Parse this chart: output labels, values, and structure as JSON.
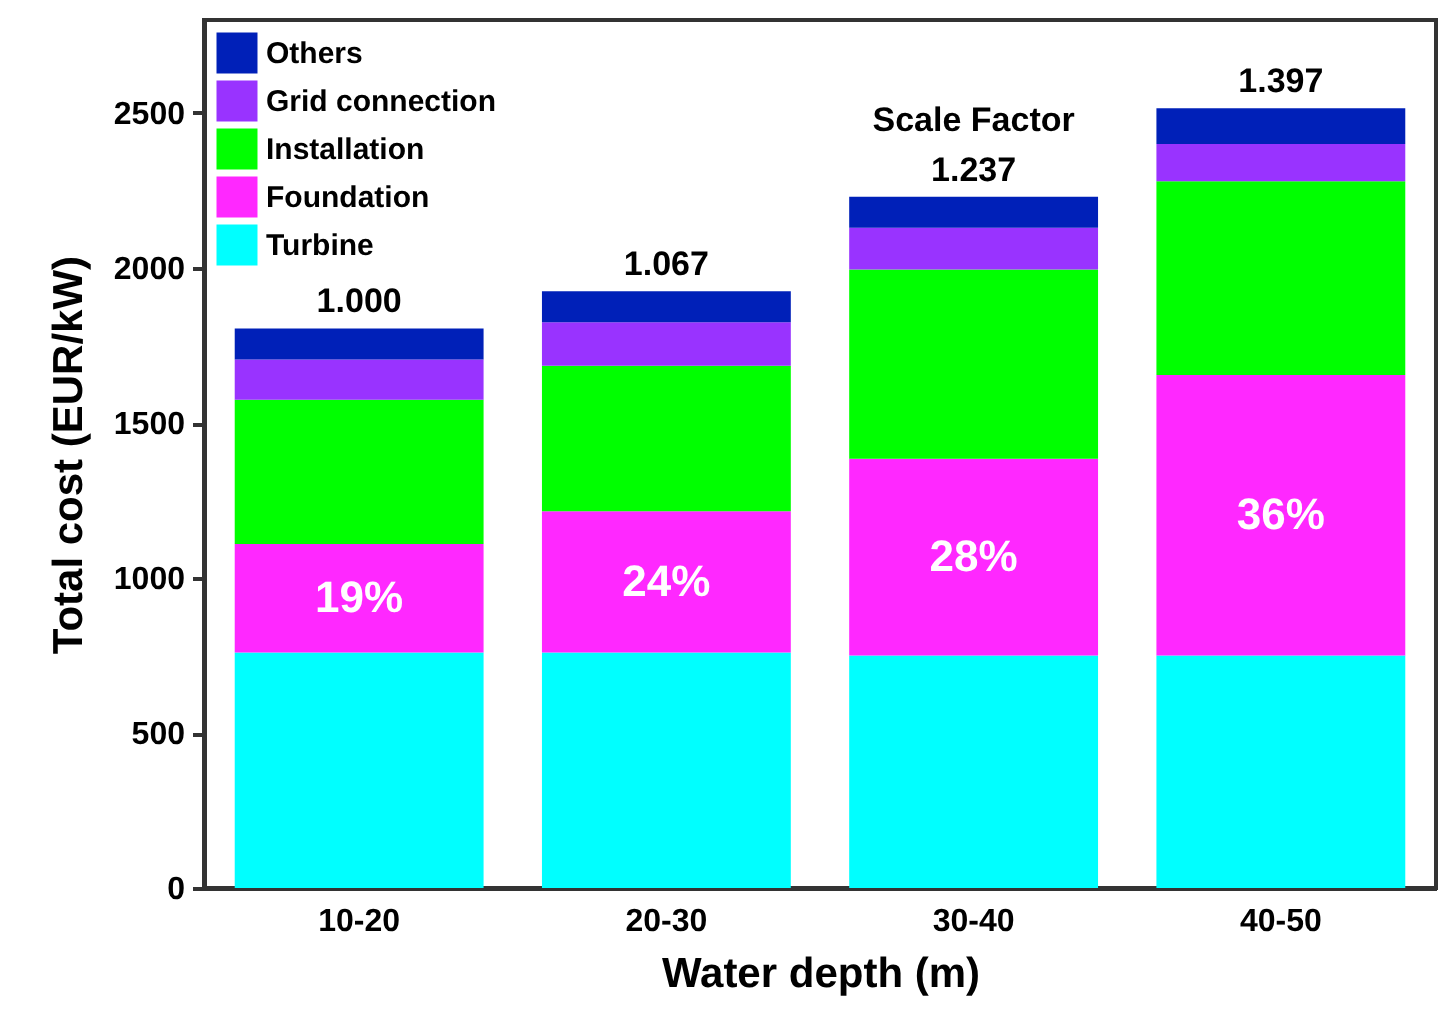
{
  "chart_data": {
    "type": "bar",
    "stacked": true,
    "xlabel": "Water depth (m)",
    "ylabel": "Total cost (EUR/kW)",
    "categories": [
      "10-20",
      "20-30",
      "30-40",
      "40-50"
    ],
    "series": [
      {
        "name": "Turbine",
        "color": "#00ffff",
        "values": [
          760,
          760,
          750,
          750
        ]
      },
      {
        "name": "Foundation",
        "color": "#ff28ff",
        "values": [
          350,
          455,
          635,
          905
        ]
      },
      {
        "name": "Installation",
        "color": "#00ff00",
        "values": [
          465,
          470,
          610,
          625
        ]
      },
      {
        "name": "Grid connection",
        "color": "#9933ff",
        "values": [
          130,
          140,
          135,
          120
        ]
      },
      {
        "name": "Others",
        "color": "#0020b8",
        "values": [
          100,
          100,
          100,
          115
        ]
      }
    ],
    "annotations": [
      "19%",
      "24%",
      "28%",
      "36%",
      "1.000",
      "1.067",
      "1.237",
      "1.397",
      "Scale Factor"
    ],
    "ylim": [
      0,
      2800
    ],
    "yticks": [
      0,
      500,
      1000,
      1500,
      2000,
      2500
    ],
    "grid": false,
    "legend": "top left"
  }
}
